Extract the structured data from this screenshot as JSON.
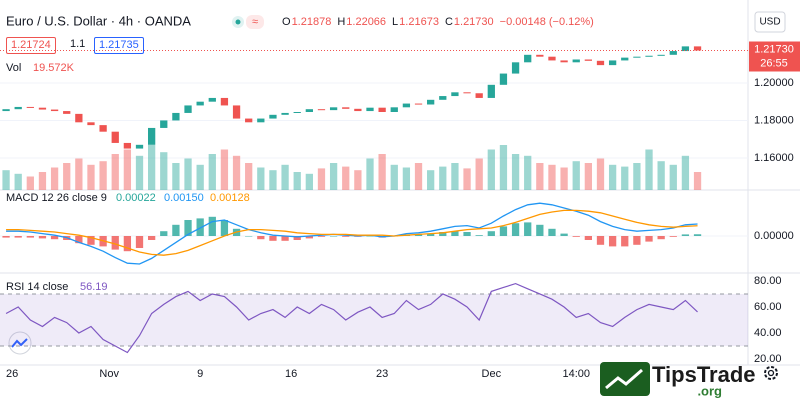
{
  "header": {
    "title": "Euro / U.S. Dollar · 4h · OANDA",
    "ohlc": [
      {
        "key": "O",
        "value": "1.21878"
      },
      {
        "key": "H",
        "value": "1.22066"
      },
      {
        "key": "L",
        "value": "1.21673"
      },
      {
        "key": "C",
        "value": "1.21730"
      }
    ],
    "change": "−0.00148 (−0.12%)",
    "sell": "1.21724",
    "spread": "1.1",
    "buy": "1.21735",
    "currency": "USD",
    "countdown": "26:55",
    "brand": "TipsTrade",
    "brand_suffix": ".org"
  },
  "chart_data": [
    {
      "type": "candlestick",
      "open": 1.185,
      "close": [
        1.186,
        1.1872,
        1.1868,
        1.1858,
        1.185,
        1.1835,
        1.179,
        1.1775,
        1.174,
        1.168,
        1.165,
        1.167,
        1.176,
        1.18,
        1.184,
        1.188,
        1.19,
        1.192,
        1.188,
        1.181,
        1.179,
        1.181,
        1.183,
        1.184,
        1.1845,
        1.186,
        1.1855,
        1.187,
        1.1862,
        1.185,
        1.1868,
        1.1845,
        1.187,
        1.189,
        1.1885,
        1.191,
        1.193,
        1.195,
        1.1945,
        1.192,
        1.199,
        1.205,
        1.211,
        1.215,
        1.214,
        1.212,
        1.211,
        1.2125,
        1.2118,
        1.2095,
        1.212,
        1.2135,
        1.214,
        1.2145,
        1.215,
        1.217,
        1.2195,
        1.2173
      ],
      "up_color": "#26a69a",
      "down_color": "#ef5350",
      "ylim": [
        1.1429,
        1.2389
      ],
      "yticks": [
        {
          "value": 1.2,
          "label": "1.20000"
        },
        {
          "value": 1.18,
          "label": "1.18000"
        },
        {
          "value": 1.16,
          "label": "1.16000"
        }
      ],
      "last": {
        "value": 1.2173,
        "label": "1.21730"
      },
      "xlim": [
        0,
        61
      ],
      "xticks": [
        {
          "value": 1,
          "label": "26"
        },
        {
          "value": 9,
          "label": "Nov"
        },
        {
          "value": 16.5,
          "label": "9"
        },
        {
          "value": 24,
          "label": "16"
        },
        {
          "value": 31.5,
          "label": "23"
        },
        {
          "value": 40.5,
          "label": "Dec"
        },
        {
          "value": 47.5,
          "label": "14:00"
        }
      ]
    },
    {
      "type": "volume",
      "title": "Vol",
      "value_text": "19.572K",
      "values": [
        22,
        18,
        15,
        20,
        25,
        30,
        35,
        28,
        32,
        40,
        45,
        38,
        50,
        42,
        30,
        35,
        28,
        40,
        45,
        38,
        30,
        25,
        22,
        28,
        20,
        18,
        24,
        30,
        26,
        22,
        35,
        40,
        28,
        25,
        30,
        22,
        26,
        30,
        24,
        35,
        45,
        50,
        40,
        38,
        30,
        28,
        25,
        32,
        30,
        35,
        28,
        26,
        30,
        45,
        32,
        28,
        38,
        20
      ],
      "ylim": [
        0,
        100
      ]
    },
    {
      "type": "macd",
      "title": "MACD 12 26 close 9",
      "histogram": {
        "label": "0.00022",
        "color": "#26a69a",
        "down_color": "#ef5350",
        "values": [
          -0.0002,
          -0.0002,
          -0.0002,
          -0.0003,
          -0.0004,
          -0.0005,
          -0.0009,
          -0.0011,
          -0.0013,
          -0.0017,
          -0.0019,
          -0.0015,
          -0.0005,
          0.0006,
          0.0014,
          0.002,
          0.0022,
          0.0024,
          0.002,
          0.0009,
          0,
          -0.0004,
          -0.0006,
          -0.0006,
          -0.0005,
          -0.0003,
          -0.0001,
          0,
          -0.0001,
          -0.0001,
          0,
          -0.0002,
          0,
          0.0002,
          0.0002,
          0.0003,
          0.0005,
          0.0006,
          0.0005,
          0.0001,
          0.0006,
          0.0012,
          0.0016,
          0.0017,
          0.0014,
          0.0009,
          0.0003,
          -0.0001,
          -0.0005,
          -0.0011,
          -0.0013,
          -0.0013,
          -0.0011,
          -0.0007,
          -0.0004,
          -0.0001,
          0.0002,
          0.00022
        ]
      },
      "macd": {
        "label": "0.00150",
        "color": "#2196f3",
        "values": [
          0.0006,
          0.0006,
          0.0005,
          0.0003,
          0.0001,
          -0.0002,
          -0.0008,
          -0.0013,
          -0.0019,
          -0.0027,
          -0.0034,
          -0.0035,
          -0.0028,
          -0.0018,
          -0.0008,
          0.0002,
          0.001,
          0.0018,
          0.002,
          0.0014,
          0.0008,
          0.0004,
          0.0001,
          0,
          -0.0001,
          0,
          0.0001,
          0.0002,
          0.0001,
          0,
          0.0001,
          -0.0001,
          0,
          0.0003,
          0.0004,
          0.0006,
          0.0009,
          0.0012,
          0.0013,
          0.001,
          0.0016,
          0.0025,
          0.0033,
          0.0039,
          0.0041,
          0.0039,
          0.0035,
          0.0031,
          0.0026,
          0.0018,
          0.0012,
          0.0008,
          0.0006,
          0.0007,
          0.0008,
          0.001,
          0.0014,
          0.0015
        ]
      },
      "signal": {
        "label": "0.00128",
        "color": "#ff9800",
        "values": [
          0.0008,
          0.0008,
          0.0007,
          0.0006,
          0.0005,
          0.0003,
          0.0001,
          -0.0002,
          -0.0006,
          -0.001,
          -0.0015,
          -0.002,
          -0.0023,
          -0.0024,
          -0.0022,
          -0.0018,
          -0.0012,
          -0.0006,
          0,
          0.0005,
          0.0008,
          0.0008,
          0.0007,
          0.0006,
          0.0004,
          0.0003,
          0.0002,
          0.0002,
          0.0002,
          0.0001,
          0.0001,
          0.0001,
          0,
          0.0001,
          0.0002,
          0.0003,
          0.0004,
          0.0006,
          0.0008,
          0.0009,
          0.001,
          0.0013,
          0.0017,
          0.0022,
          0.0027,
          0.003,
          0.0032,
          0.0032,
          0.0031,
          0.0029,
          0.0025,
          0.0021,
          0.0017,
          0.0014,
          0.0012,
          0.0011,
          0.0012,
          0.00128
        ]
      },
      "ylim": [
        -0.0045,
        0.0055
      ],
      "yticks": [
        {
          "value": 0,
          "label": "0.00000"
        }
      ]
    },
    {
      "type": "rsi",
      "title": "RSI 14 close",
      "label": "56.19",
      "color": "#7e57c2",
      "values": [
        55,
        60,
        50,
        45,
        52,
        48,
        40,
        45,
        35,
        30,
        25,
        38,
        55,
        62,
        68,
        72,
        65,
        70,
        68,
        60,
        50,
        55,
        58,
        52,
        60,
        55,
        62,
        58,
        50,
        56,
        60,
        52,
        55,
        65,
        58,
        62,
        70,
        66,
        60,
        50,
        72,
        75,
        78,
        74,
        70,
        66,
        60,
        52,
        55,
        48,
        45,
        52,
        58,
        62,
        60,
        58,
        65,
        56.19
      ],
      "bands": [
        30,
        70
      ],
      "ylim": [
        15.4,
        84.6
      ],
      "yticks": [
        {
          "value": 80,
          "label": "80.00"
        },
        {
          "value": 60,
          "label": "60.00"
        },
        {
          "value": 40,
          "label": "40.00"
        },
        {
          "value": 20,
          "label": "20.00"
        }
      ]
    }
  ]
}
